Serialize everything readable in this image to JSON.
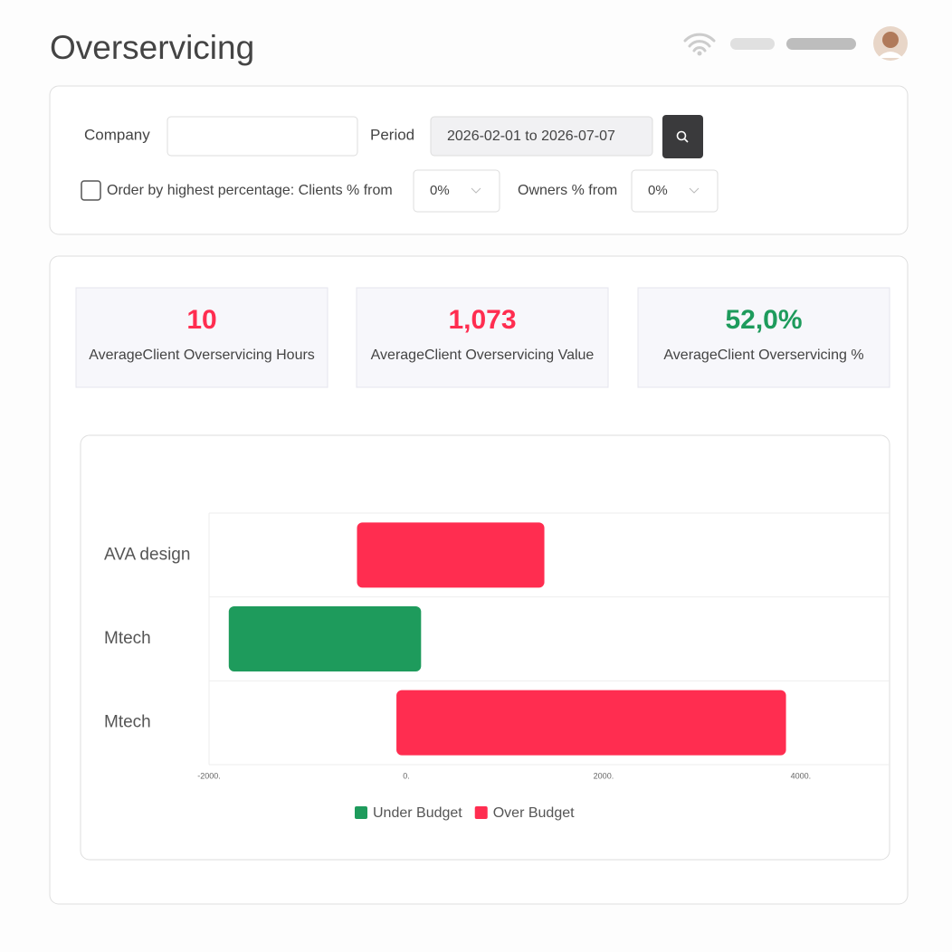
{
  "header": {
    "title": "Overservicing"
  },
  "filters": {
    "company_label": "Company",
    "period_label": "Period",
    "period_value": "2026-02-01 to 2026-07-07",
    "order_label": "Order by highest percentage: Clients % from",
    "clients_from": "0%",
    "owners_label": "Owners % from",
    "owners_from": "0%"
  },
  "kpis": [
    {
      "value": "10",
      "label": "AverageClient Overservicing Hours",
      "color": "#ff2d50"
    },
    {
      "value": "1,073",
      "label": "AverageClient Overservicing Value",
      "color": "#ff2d50"
    },
    {
      "value": "52,0%",
      "label": "AverageClient Overservicing %",
      "color": "#1e9b5c"
    }
  ],
  "chart_data": {
    "type": "floating-bar",
    "orientation": "horizontal",
    "categories": [
      "AVA design",
      "Mtech",
      "Mtech"
    ],
    "series": [
      {
        "name": "Under Budget",
        "color": "#1e9b5c",
        "values": [
          null,
          [
            -1800,
            150
          ],
          null
        ]
      },
      {
        "name": "Over Budget",
        "color": "#ff2d50",
        "values": [
          [
            -500,
            1400
          ],
          null,
          [
            -100,
            3850
          ]
        ]
      }
    ],
    "xlim": [
      -2000,
      4900
    ],
    "xticks": [
      {
        "value": -2000,
        "label": "-2000."
      },
      {
        "value": 0,
        "label": "0."
      },
      {
        "value": 2000,
        "label": "2000."
      },
      {
        "value": 4000,
        "label": "4000."
      }
    ],
    "grid": false,
    "legend": "bottom"
  }
}
